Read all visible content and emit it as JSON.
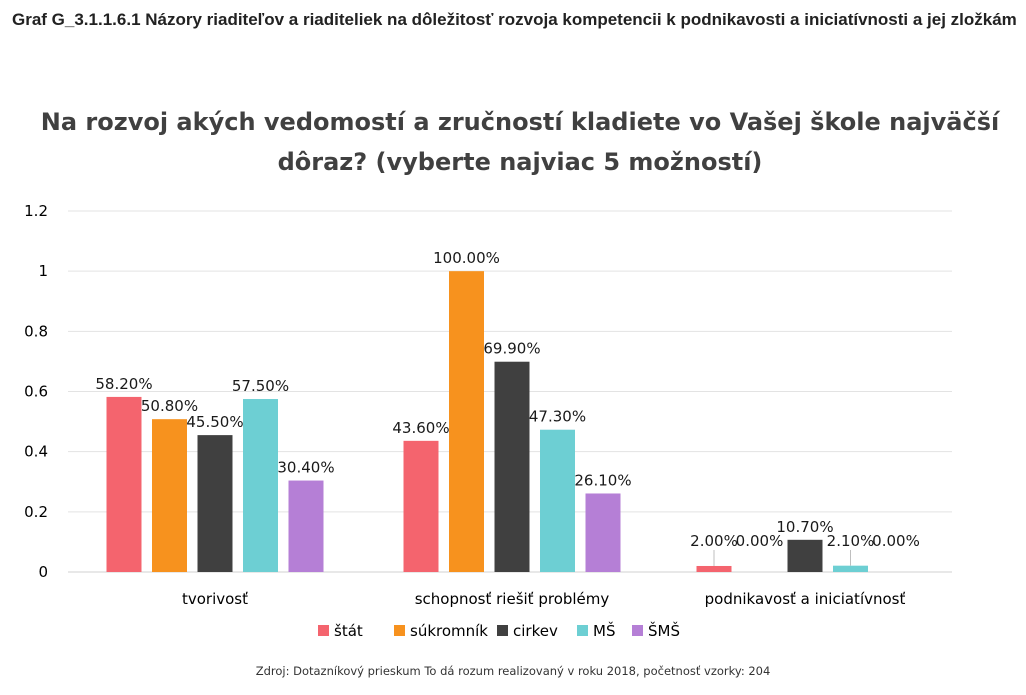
{
  "caption": "Graf G_3.1.1.6.1 Názory riaditeľov a riaditeliek na dôležitosť rozvoja kompetencii k podnikavosti a iniciatívnosti a jej zložkám",
  "source": "Zdroj: Dotazníkový prieskum To dá rozum realizovaný v roku 2018, početnosť vzorky: 204",
  "chart_data": {
    "type": "bar",
    "title_lines": [
      "Na rozvoj akých vedomostí a zručností kladiete vo Vašej škole najväčší",
      "dôraz? (vyberte najviac 5 možností)"
    ],
    "categories": [
      "tvorivosť",
      "schopnosť riešiť problémy",
      "podnikavosť a iniciatívnosť"
    ],
    "series": [
      {
        "name": "štát",
        "color": "#F4646E",
        "values": [
          0.582,
          0.436,
          0.02
        ],
        "labels": [
          "58.20%",
          "43.60%",
          "2.00%"
        ]
      },
      {
        "name": "súkromník",
        "color": "#F7921E",
        "values": [
          0.508,
          1.0,
          0.0
        ],
        "labels": [
          "50.80%",
          "100.00%",
          "0.00%"
        ]
      },
      {
        "name": "cirkev",
        "color": "#404040",
        "values": [
          0.455,
          0.699,
          0.107
        ],
        "labels": [
          "45.50%",
          "69.90%",
          "10.70%"
        ]
      },
      {
        "name": "MŠ",
        "color": "#6DCFD3",
        "values": [
          0.575,
          0.473,
          0.021
        ],
        "labels": [
          "57.50%",
          "47.30%",
          "2.10%"
        ]
      },
      {
        "name": "ŠMŠ",
        "color": "#B57FD6",
        "values": [
          0.304,
          0.261,
          0.0
        ],
        "labels": [
          "30.40%",
          "26.10%",
          "0.00%"
        ]
      }
    ],
    "ylim": [
      0,
      1.2
    ],
    "yticks": [
      "0",
      "0.2",
      "0.4",
      "0.6",
      "0.8",
      "1",
      "1.2"
    ],
    "grid": true,
    "legend_position": "bottom"
  }
}
